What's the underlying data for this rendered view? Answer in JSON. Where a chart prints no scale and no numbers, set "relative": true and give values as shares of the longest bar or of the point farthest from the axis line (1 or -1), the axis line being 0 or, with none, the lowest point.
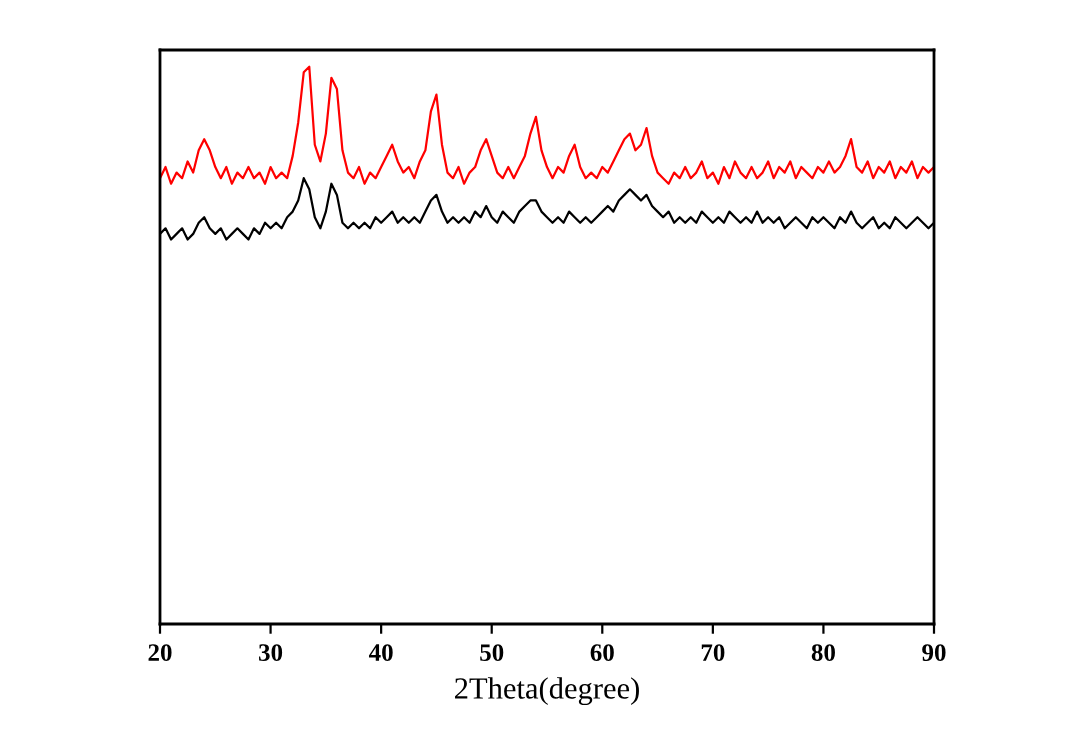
{
  "chart_data": {
    "type": "line",
    "relative": true,
    "xlabel": "2Theta(degree)",
    "xlim": [
      20,
      90
    ],
    "xticks": [
      20,
      30,
      40,
      50,
      60,
      70,
      80,
      90
    ],
    "grid": false,
    "legend": false,
    "marker": "none",
    "line_style": "solid",
    "x": [
      20,
      20.5,
      21,
      21.5,
      22,
      22.5,
      23,
      23.5,
      24,
      24.5,
      25,
      25.5,
      26,
      26.5,
      27,
      27.5,
      28,
      28.5,
      29,
      29.5,
      30,
      30.5,
      31,
      31.5,
      32,
      32.5,
      33,
      33.5,
      34,
      34.5,
      35,
      35.5,
      36,
      36.5,
      37,
      37.5,
      38,
      38.5,
      39,
      39.5,
      40,
      40.5,
      41,
      41.5,
      42,
      42.5,
      43,
      43.5,
      44,
      44.5,
      45,
      45.5,
      46,
      46.5,
      47,
      47.5,
      48,
      48.5,
      49,
      49.5,
      50,
      50.5,
      51,
      51.5,
      52,
      52.5,
      53,
      53.5,
      54,
      54.5,
      55,
      55.5,
      56,
      56.5,
      57,
      57.5,
      58,
      58.5,
      59,
      59.5,
      60,
      60.5,
      61,
      61.5,
      62,
      62.5,
      63,
      63.5,
      64,
      64.5,
      65,
      65.5,
      66,
      66.5,
      67,
      67.5,
      68,
      68.5,
      69,
      69.5,
      70,
      70.5,
      71,
      71.5,
      72,
      72.5,
      73,
      73.5,
      74,
      74.5,
      75,
      75.5,
      76,
      76.5,
      77,
      77.5,
      78,
      78.5,
      79,
      79.5,
      80,
      80.5,
      81,
      81.5,
      82,
      82.5,
      83,
      83.5,
      84,
      84.5,
      85,
      85.5,
      86,
      86.5,
      87,
      87.5,
      88,
      88.5,
      89,
      89.5,
      90
    ],
    "series": [
      {
        "color": "#ff0000",
        "values": [
          0.8,
          0.82,
          0.79,
          0.81,
          0.8,
          0.83,
          0.81,
          0.85,
          0.87,
          0.85,
          0.82,
          0.8,
          0.82,
          0.79,
          0.81,
          0.8,
          0.82,
          0.8,
          0.81,
          0.79,
          0.82,
          0.8,
          0.81,
          0.8,
          0.84,
          0.9,
          0.99,
          1.0,
          0.86,
          0.83,
          0.88,
          0.98,
          0.96,
          0.85,
          0.81,
          0.8,
          0.82,
          0.79,
          0.81,
          0.8,
          0.82,
          0.84,
          0.86,
          0.83,
          0.81,
          0.82,
          0.8,
          0.83,
          0.85,
          0.92,
          0.95,
          0.86,
          0.81,
          0.8,
          0.82,
          0.79,
          0.81,
          0.82,
          0.85,
          0.87,
          0.84,
          0.81,
          0.8,
          0.82,
          0.8,
          0.82,
          0.84,
          0.88,
          0.91,
          0.85,
          0.82,
          0.8,
          0.82,
          0.81,
          0.84,
          0.86,
          0.82,
          0.8,
          0.81,
          0.8,
          0.82,
          0.81,
          0.83,
          0.85,
          0.87,
          0.88,
          0.85,
          0.86,
          0.89,
          0.84,
          0.81,
          0.8,
          0.79,
          0.81,
          0.8,
          0.82,
          0.8,
          0.81,
          0.83,
          0.8,
          0.81,
          0.79,
          0.82,
          0.8,
          0.83,
          0.81,
          0.8,
          0.82,
          0.8,
          0.81,
          0.83,
          0.8,
          0.82,
          0.81,
          0.83,
          0.8,
          0.82,
          0.81,
          0.8,
          0.82,
          0.81,
          0.83,
          0.81,
          0.82,
          0.84,
          0.87,
          0.82,
          0.81,
          0.83,
          0.8,
          0.82,
          0.81,
          0.83,
          0.8,
          0.82,
          0.81,
          0.83,
          0.8,
          0.82,
          0.81,
          0.82
        ]
      },
      {
        "color": "#000000",
        "values": [
          0.7,
          0.71,
          0.69,
          0.7,
          0.71,
          0.69,
          0.7,
          0.72,
          0.73,
          0.71,
          0.7,
          0.71,
          0.69,
          0.7,
          0.71,
          0.7,
          0.69,
          0.71,
          0.7,
          0.72,
          0.71,
          0.72,
          0.71,
          0.73,
          0.74,
          0.76,
          0.8,
          0.78,
          0.73,
          0.71,
          0.74,
          0.79,
          0.77,
          0.72,
          0.71,
          0.72,
          0.71,
          0.72,
          0.71,
          0.73,
          0.72,
          0.73,
          0.74,
          0.72,
          0.73,
          0.72,
          0.73,
          0.72,
          0.74,
          0.76,
          0.77,
          0.74,
          0.72,
          0.73,
          0.72,
          0.73,
          0.72,
          0.74,
          0.73,
          0.75,
          0.73,
          0.72,
          0.74,
          0.73,
          0.72,
          0.74,
          0.75,
          0.76,
          0.76,
          0.74,
          0.73,
          0.72,
          0.73,
          0.72,
          0.74,
          0.73,
          0.72,
          0.73,
          0.72,
          0.73,
          0.74,
          0.75,
          0.74,
          0.76,
          0.77,
          0.78,
          0.77,
          0.76,
          0.77,
          0.75,
          0.74,
          0.73,
          0.74,
          0.72,
          0.73,
          0.72,
          0.73,
          0.72,
          0.74,
          0.73,
          0.72,
          0.73,
          0.72,
          0.74,
          0.73,
          0.72,
          0.73,
          0.72,
          0.74,
          0.72,
          0.73,
          0.72,
          0.73,
          0.71,
          0.72,
          0.73,
          0.72,
          0.71,
          0.73,
          0.72,
          0.73,
          0.72,
          0.71,
          0.73,
          0.72,
          0.74,
          0.72,
          0.71,
          0.72,
          0.73,
          0.71,
          0.72,
          0.71,
          0.73,
          0.72,
          0.71,
          0.72,
          0.73,
          0.72,
          0.71,
          0.72
        ]
      }
    ]
  }
}
